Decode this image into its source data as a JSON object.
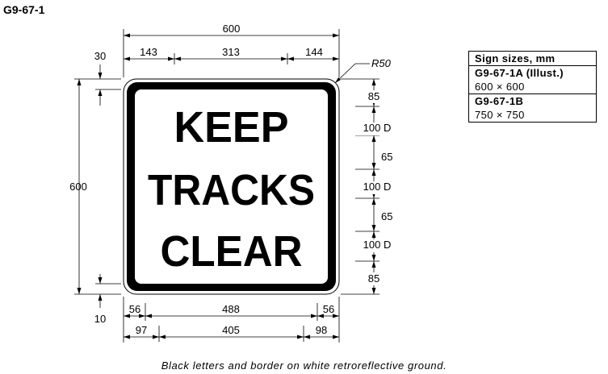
{
  "sign_code": "G9-67-1",
  "sign": {
    "lines": [
      "KEEP",
      "TRACKS",
      "CLEAR"
    ],
    "colors": {
      "letters_border": "#000000",
      "ground": "#ffffff"
    }
  },
  "dimensions": {
    "top_total": "600",
    "top_segments": [
      "143",
      "313",
      "144"
    ],
    "corner_radius": "R50",
    "left_total": "600",
    "left_top_offset": "30",
    "left_bottom_offset": "10",
    "right_stack": [
      "85",
      "100 D",
      "65",
      "100 D",
      "65",
      "100 D",
      "85"
    ],
    "bottom_row1": [
      "56",
      "488",
      "56"
    ],
    "bottom_row2": [
      "97",
      "405",
      "98"
    ]
  },
  "sizes_table": {
    "title": "Sign sizes, mm",
    "rows": [
      {
        "code": "G9-67-1A (Illust.)",
        "size": "600 × 600"
      },
      {
        "code": "G9-67-1B",
        "size": "750 × 750"
      }
    ]
  },
  "caption": "Black letters and border on white retroreflective ground."
}
